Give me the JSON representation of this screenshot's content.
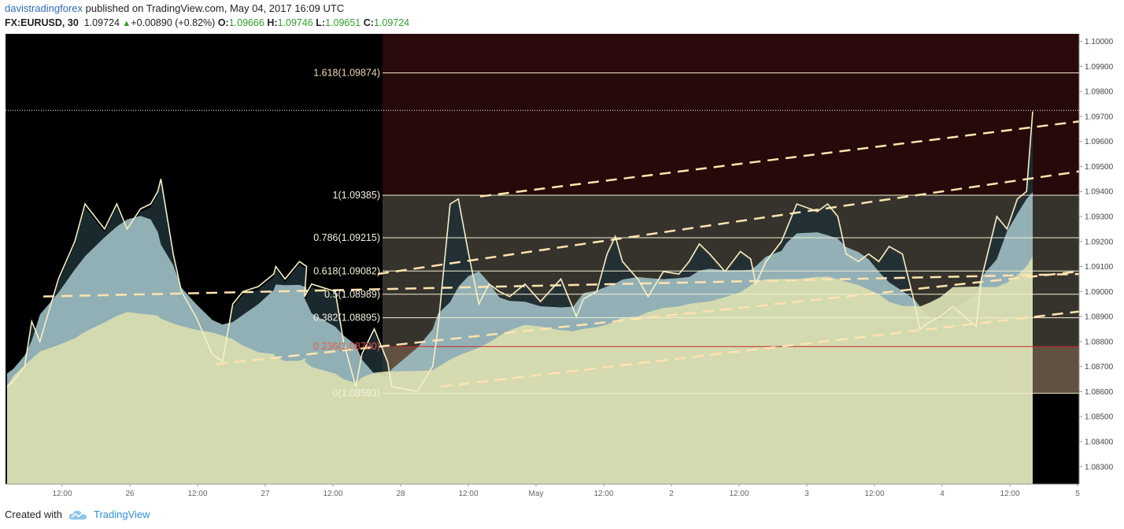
{
  "header": {
    "author": "davistradingforex",
    "published_text": "published on TradingView.com, May 04, 2017 16:09 UTC",
    "symbol": "FX:EURUSD, 30",
    "last": "1.09724",
    "change": "+0.00890 (+0.82%)",
    "o_label": "O:",
    "o_value": "1.09666",
    "h_label": "H:",
    "h_value": "1.09746",
    "l_label": "L:",
    "l_value": "1.09651",
    "c_label": "C:",
    "c_value": "1.09724"
  },
  "footer": {
    "created_with": "Created with",
    "brand": "TradingView"
  },
  "colors": {
    "background": "#000000",
    "price_line": "#f5f0c8",
    "fib_line": "#f3f0d0",
    "fib_red": "#c62828",
    "trend_line": "#ffe4b0",
    "zone_upper": "#2a0a0a",
    "zone_mid": "#3c3832",
    "zone_lower": "#6a5a48",
    "area_light": "#d8dcb0",
    "area_blue": "#9fbfc4",
    "area_dark": "#1e3036"
  },
  "chart_data": {
    "type": "line",
    "symbol": "FX:EURUSD",
    "timeframe": "30",
    "ylim": [
      1.0823,
      1.1003
    ],
    "y_ticks": [
      "1.10000",
      "1.09900",
      "1.09800",
      "1.09700",
      "1.09600",
      "1.09500",
      "1.09400",
      "1.09300",
      "1.09200",
      "1.09100",
      "1.09000",
      "1.08900",
      "1.08800",
      "1.08700",
      "1.08600",
      "1.08500",
      "1.08400",
      "1.08300"
    ],
    "x_ticks": [
      "12:00",
      "26",
      "12:00",
      "27",
      "12:00",
      "28",
      "12:00",
      "May",
      "12:00",
      "2",
      "12:00",
      "3",
      "12:00",
      "4",
      "12:00",
      "5"
    ],
    "fibonacci": [
      {
        "label": "1.618(1.09874)",
        "price": 1.09874
      },
      {
        "label": "1(1.09385)",
        "price": 1.09385
      },
      {
        "label": "0.786(1.09215)",
        "price": 1.09215
      },
      {
        "label": "0.618(1.09082)",
        "price": 1.09082
      },
      {
        "label": "0.5(1.08989)",
        "price": 1.08989
      },
      {
        "label": "0.382(1.08895)",
        "price": 1.08895
      },
      {
        "label": "0.236(1.08780)",
        "price": 1.0878
      },
      {
        "label": "0(1.08593)",
        "price": 1.08593
      }
    ],
    "last_price": 1.09724,
    "series": [
      {
        "values": [
          1.0862,
          1.0864,
          1.087,
          1.0888,
          1.088,
          1.0905,
          1.092,
          1.0935,
          1.0925,
          1.0935,
          1.0925,
          1.0933,
          1.0935,
          1.094,
          1.0945,
          1.0915,
          1.09,
          1.089,
          1.0875,
          1.0872,
          1.0895,
          1.09,
          1.0902,
          1.0907,
          1.091,
          1.0905,
          1.0912,
          1.091,
          1.0898,
          1.0903,
          1.09,
          1.088,
          1.0862,
          1.0875,
          1.0885,
          1.0872,
          1.0862,
          1.086,
          1.087,
          1.0885,
          1.0935,
          1.0937,
          1.0915,
          1.0895,
          1.0903,
          1.09,
          1.0898,
          1.0903,
          1.0896,
          1.0905,
          1.0893,
          1.089,
          1.0897,
          1.09,
          1.0915,
          1.0922,
          1.0912,
          1.0905,
          1.0898,
          1.0908,
          1.0907,
          1.0912,
          1.0919,
          1.0915,
          1.0908,
          1.0916,
          1.0913,
          1.0903,
          1.0912,
          1.092,
          1.0925,
          1.0935,
          1.0932,
          1.0935,
          1.093,
          1.0915,
          1.0912,
          1.0915,
          1.0912,
          1.0918,
          1.0915,
          1.0895,
          1.0885,
          1.0888,
          1.089,
          1.0894,
          1.0886,
          1.0905,
          1.093,
          1.0925,
          1.0937,
          1.094,
          1.0972
        ],
        "x_fraction": [
          0.0,
          0.006,
          0.017,
          0.024,
          0.032,
          0.05,
          0.066,
          0.076,
          0.095,
          0.107,
          0.117,
          0.13,
          0.14,
          0.147,
          0.15,
          0.162,
          0.17,
          0.184,
          0.2,
          0.21,
          0.22,
          0.23,
          0.245,
          0.26,
          0.262,
          0.271,
          0.285,
          0.292,
          0.29,
          0.297,
          0.32,
          0.328,
          0.34,
          0.346,
          0.358,
          0.371,
          0.375,
          0.4,
          0.415,
          0.42,
          0.432,
          0.44,
          0.45,
          0.46,
          0.47,
          0.48,
          0.49,
          0.505,
          0.52,
          0.54,
          0.552,
          0.555,
          0.562,
          0.575,
          0.585,
          0.593,
          0.6,
          0.615,
          0.625,
          0.64,
          0.655,
          0.665,
          0.675,
          0.685,
          0.7,
          0.715,
          0.725,
          0.73,
          0.74,
          0.755,
          0.76,
          0.77,
          0.79,
          0.8,
          0.81,
          0.818,
          0.83,
          0.84,
          0.85,
          0.86,
          0.873,
          0.885,
          0.89,
          0.9,
          0.91,
          0.922,
          0.945,
          0.95,
          0.965,
          0.975,
          0.985,
          0.994,
          1.0
        ]
      }
    ]
  }
}
